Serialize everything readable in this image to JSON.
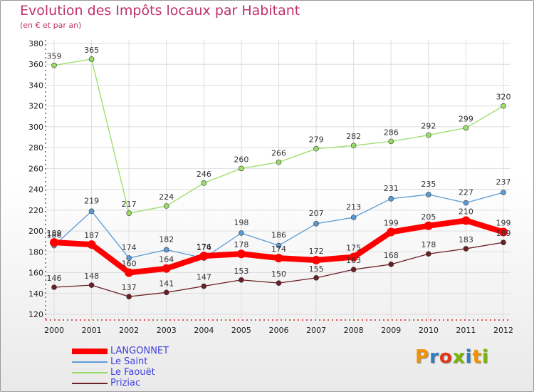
{
  "header": {
    "title": "Evolution des Impôts locaux par Habitant",
    "subtitle": "(en € et par an)"
  },
  "logo": {
    "text": "Proxiti",
    "colors": [
      "#f39200",
      "#2e7fc2",
      "#e2361c",
      "#7ab800",
      "#2e7fc2",
      "#f39200",
      "#7ab800"
    ]
  },
  "chart_data": {
    "type": "line",
    "x": [
      "2000",
      "2001",
      "2002",
      "2003",
      "2004",
      "2005",
      "2006",
      "2007",
      "2008",
      "2009",
      "2010",
      "2011",
      "2012"
    ],
    "ylim": [
      120,
      380
    ],
    "yticks": [
      120,
      140,
      160,
      180,
      200,
      220,
      240,
      260,
      280,
      300,
      320,
      340,
      360,
      380
    ],
    "grid": true,
    "legend_position": "bottom-left",
    "series": [
      {
        "name": "LANGONNET",
        "color": "#ff0000",
        "values": [
          189,
          187,
          160,
          164,
          176,
          178,
          174,
          172,
          175,
          199,
          205,
          210,
          199
        ]
      },
      {
        "name": "Le Saint",
        "color": "#5b9bd5",
        "values": [
          186,
          219,
          174,
          182,
          174,
          198,
          186,
          207,
          213,
          231,
          235,
          227,
          237
        ]
      },
      {
        "name": "Le Faouët",
        "color": "#99dd66",
        "values": [
          359,
          365,
          217,
          224,
          246,
          260,
          266,
          279,
          282,
          286,
          292,
          299,
          320
        ]
      },
      {
        "name": "Priziac",
        "color": "#6b1e26",
        "values": [
          146,
          148,
          137,
          141,
          147,
          153,
          150,
          155,
          163,
          168,
          178,
          183,
          189
        ]
      }
    ]
  }
}
